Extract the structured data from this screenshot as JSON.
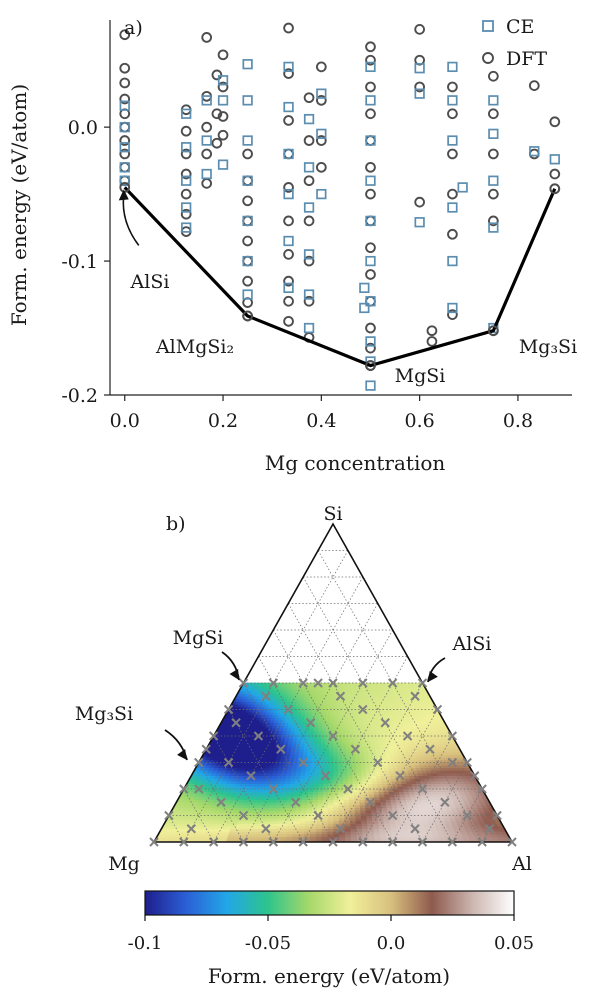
{
  "chart_data": [
    {
      "type": "scatter",
      "panel_label": "a)",
      "xlabel": "Mg concentration",
      "ylabel": "Form. energy (eV/atom)",
      "xlim": [
        -0.03,
        0.91
      ],
      "ylim": [
        -0.2,
        0.08
      ],
      "xticks": [
        "0.0",
        "0.2",
        "0.4",
        "0.6",
        "0.8"
      ],
      "yticks": [
        "0.0",
        "-0.1",
        "-0.2"
      ],
      "legend": {
        "position": "top-right",
        "entries": [
          "CE",
          "DFT"
        ]
      },
      "colors": {
        "CE": "#5b8db0",
        "DFT": "#4d4d4d",
        "hull": "#000000"
      },
      "hull": {
        "x": [
          0.0,
          0.25,
          0.5,
          0.75,
          0.875
        ],
        "y": [
          -0.045,
          -0.141,
          -0.178,
          -0.152,
          -0.046
        ]
      },
      "annotations": [
        {
          "text": "AlSi",
          "x": 0.0,
          "y": -0.045
        },
        {
          "text": "AlMgSi₂",
          "x": 0.25,
          "y": -0.141
        },
        {
          "text": "MgSi",
          "x": 0.5,
          "y": -0.178
        },
        {
          "text": "Mg₃Si",
          "x": 0.75,
          "y": -0.152
        }
      ],
      "series": [
        {
          "name": "DFT",
          "marker": "circle",
          "points": [
            [
              0.0,
              0.069
            ],
            [
              0.0,
              0.044
            ],
            [
              0.0,
              0.033
            ],
            [
              0.0,
              0.021
            ],
            [
              0.0,
              0.01
            ],
            [
              0.0,
              0.0
            ],
            [
              0.0,
              -0.01
            ],
            [
              0.0,
              -0.02
            ],
            [
              0.0,
              -0.03
            ],
            [
              0.0,
              -0.04
            ],
            [
              0.125,
              0.013
            ],
            [
              0.125,
              -0.003
            ],
            [
              0.125,
              -0.02
            ],
            [
              0.125,
              -0.035
            ],
            [
              0.125,
              -0.05
            ],
            [
              0.125,
              -0.065
            ],
            [
              0.125,
              -0.078
            ],
            [
              0.1667,
              0.067
            ],
            [
              0.1667,
              0.023
            ],
            [
              0.1667,
              0.0
            ],
            [
              0.1667,
              -0.02
            ],
            [
              0.1667,
              -0.042
            ],
            [
              0.1875,
              0.039
            ],
            [
              0.1875,
              0.01
            ],
            [
              0.1875,
              -0.012
            ],
            [
              0.2,
              0.054
            ],
            [
              0.2,
              0.03
            ],
            [
              0.2,
              0.008
            ],
            [
              0.2,
              -0.006
            ],
            [
              0.25,
              -0.02
            ],
            [
              0.25,
              -0.04
            ],
            [
              0.25,
              -0.055
            ],
            [
              0.25,
              -0.07
            ],
            [
              0.25,
              -0.085
            ],
            [
              0.25,
              -0.1
            ],
            [
              0.25,
              -0.115
            ],
            [
              0.25,
              -0.131
            ],
            [
              0.25,
              -0.141
            ],
            [
              0.3333,
              0.074
            ],
            [
              0.3333,
              0.04
            ],
            [
              0.3333,
              0.005
            ],
            [
              0.3333,
              -0.02
            ],
            [
              0.3333,
              -0.045
            ],
            [
              0.3333,
              -0.07
            ],
            [
              0.3333,
              -0.095
            ],
            [
              0.3333,
              -0.115
            ],
            [
              0.3333,
              -0.13
            ],
            [
              0.3333,
              -0.145
            ],
            [
              0.375,
              0.022
            ],
            [
              0.375,
              -0.01
            ],
            [
              0.375,
              -0.04
            ],
            [
              0.375,
              -0.07
            ],
            [
              0.375,
              -0.1
            ],
            [
              0.375,
              -0.13
            ],
            [
              0.375,
              -0.157
            ],
            [
              0.4,
              0.045
            ],
            [
              0.4,
              0.02
            ],
            [
              0.4,
              -0.01
            ],
            [
              0.4,
              -0.03
            ],
            [
              0.5,
              0.06
            ],
            [
              0.5,
              0.05
            ],
            [
              0.5,
              0.03
            ],
            [
              0.5,
              0.01
            ],
            [
              0.5,
              -0.01
            ],
            [
              0.5,
              -0.03
            ],
            [
              0.5,
              -0.05
            ],
            [
              0.5,
              -0.07
            ],
            [
              0.5,
              -0.09
            ],
            [
              0.5,
              -0.11
            ],
            [
              0.5,
              -0.13
            ],
            [
              0.5,
              -0.15
            ],
            [
              0.5,
              -0.165
            ],
            [
              0.5,
              -0.178
            ],
            [
              0.6,
              0.073
            ],
            [
              0.6,
              0.05
            ],
            [
              0.6,
              0.03
            ],
            [
              0.6,
              -0.056
            ],
            [
              0.625,
              -0.152
            ],
            [
              0.625,
              -0.16
            ],
            [
              0.6667,
              0.03
            ],
            [
              0.6667,
              0.01
            ],
            [
              0.6667,
              -0.02
            ],
            [
              0.6667,
              -0.05
            ],
            [
              0.6667,
              -0.08
            ],
            [
              0.6667,
              -0.14
            ],
            [
              0.75,
              0.038
            ],
            [
              0.75,
              0.01
            ],
            [
              0.75,
              -0.02
            ],
            [
              0.75,
              -0.05
            ],
            [
              0.75,
              -0.07
            ],
            [
              0.75,
              -0.152
            ],
            [
              0.8333,
              0.031
            ],
            [
              0.8333,
              -0.02
            ],
            [
              0.875,
              0.004
            ],
            [
              0.875,
              -0.035
            ],
            [
              0.875,
              -0.046
            ]
          ]
        },
        {
          "name": "CE",
          "marker": "square",
          "points": [
            [
              0.0,
              0.016
            ],
            [
              0.0,
              0.0
            ],
            [
              0.0,
              -0.015
            ],
            [
              0.0,
              -0.03
            ],
            [
              0.0,
              -0.04
            ],
            [
              0.125,
              0.01
            ],
            [
              0.125,
              -0.015
            ],
            [
              0.125,
              -0.04
            ],
            [
              0.125,
              -0.06
            ],
            [
              0.125,
              -0.075
            ],
            [
              0.1667,
              0.02
            ],
            [
              0.1667,
              -0.01
            ],
            [
              0.1667,
              -0.035
            ],
            [
              0.2,
              0.035
            ],
            [
              0.2,
              0.02
            ],
            [
              0.2,
              -0.028
            ],
            [
              0.25,
              0.047
            ],
            [
              0.25,
              0.02
            ],
            [
              0.25,
              -0.01
            ],
            [
              0.25,
              -0.04
            ],
            [
              0.25,
              -0.07
            ],
            [
              0.25,
              -0.1
            ],
            [
              0.25,
              -0.125
            ],
            [
              0.3333,
              0.045
            ],
            [
              0.3333,
              0.015
            ],
            [
              0.3333,
              -0.02
            ],
            [
              0.3333,
              -0.05
            ],
            [
              0.3333,
              -0.085
            ],
            [
              0.3333,
              -0.12
            ],
            [
              0.375,
              0.006
            ],
            [
              0.375,
              -0.03
            ],
            [
              0.375,
              -0.06
            ],
            [
              0.375,
              -0.095
            ],
            [
              0.375,
              -0.125
            ],
            [
              0.375,
              -0.15
            ],
            [
              0.4,
              0.025
            ],
            [
              0.4,
              -0.005
            ],
            [
              0.4,
              -0.05
            ],
            [
              0.5,
              0.045
            ],
            [
              0.5,
              0.02
            ],
            [
              0.5,
              -0.01
            ],
            [
              0.5,
              -0.04
            ],
            [
              0.5,
              -0.07
            ],
            [
              0.5,
              -0.1
            ],
            [
              0.5,
              -0.13
            ],
            [
              0.5,
              -0.16
            ],
            [
              0.5,
              -0.175
            ],
            [
              0.5,
              -0.193
            ],
            [
              0.4875,
              -0.12
            ],
            [
              0.4875,
              -0.135
            ],
            [
              0.6,
              0.044
            ],
            [
              0.6,
              0.025
            ],
            [
              0.6,
              -0.071
            ],
            [
              0.6667,
              0.045
            ],
            [
              0.6667,
              0.02
            ],
            [
              0.6667,
              -0.01
            ],
            [
              0.6667,
              -0.06
            ],
            [
              0.6667,
              -0.1
            ],
            [
              0.6667,
              -0.135
            ],
            [
              0.6875,
              -0.045
            ],
            [
              0.75,
              0.02
            ],
            [
              0.75,
              -0.005
            ],
            [
              0.75,
              -0.04
            ],
            [
              0.75,
              -0.075
            ],
            [
              0.75,
              -0.15
            ],
            [
              0.8333,
              -0.018
            ],
            [
              0.875,
              -0.024
            ]
          ]
        }
      ]
    },
    {
      "type": "heatmap",
      "panel_label": "b)",
      "subtype": "ternary",
      "vertices": {
        "top": "Si",
        "left": "Mg",
        "right": "Al"
      },
      "colorbar": {
        "label": "Form. energy (eV/atom)",
        "range": [
          -0.1,
          0.05
        ],
        "ticks": [
          "-0.1",
          "-0.05",
          "0.0",
          "0.05"
        ],
        "colormap": [
          "#1e1e8c",
          "#2b5fd6",
          "#22a7e8",
          "#2ec48c",
          "#a6d86a",
          "#f0f09a",
          "#d8c07e",
          "#8e5a4e",
          "#cdb7b1",
          "#ffffff"
        ]
      },
      "annotations": [
        {
          "text": "MgSi",
          "composition": {
            "Si": 0.5,
            "Mg": 0.5,
            "Al": 0.0
          }
        },
        {
          "text": "AlSi",
          "composition": {
            "Si": 0.5,
            "Mg": 0.0,
            "Al": 0.5
          }
        },
        {
          "text": "Mg₃Si",
          "composition": {
            "Si": 0.25,
            "Mg": 0.75,
            "Al": 0.0
          }
        }
      ],
      "sampled_fraction_max_si": 0.5,
      "sample_points_marker": "x",
      "sample_points_color": "#808080"
    }
  ]
}
